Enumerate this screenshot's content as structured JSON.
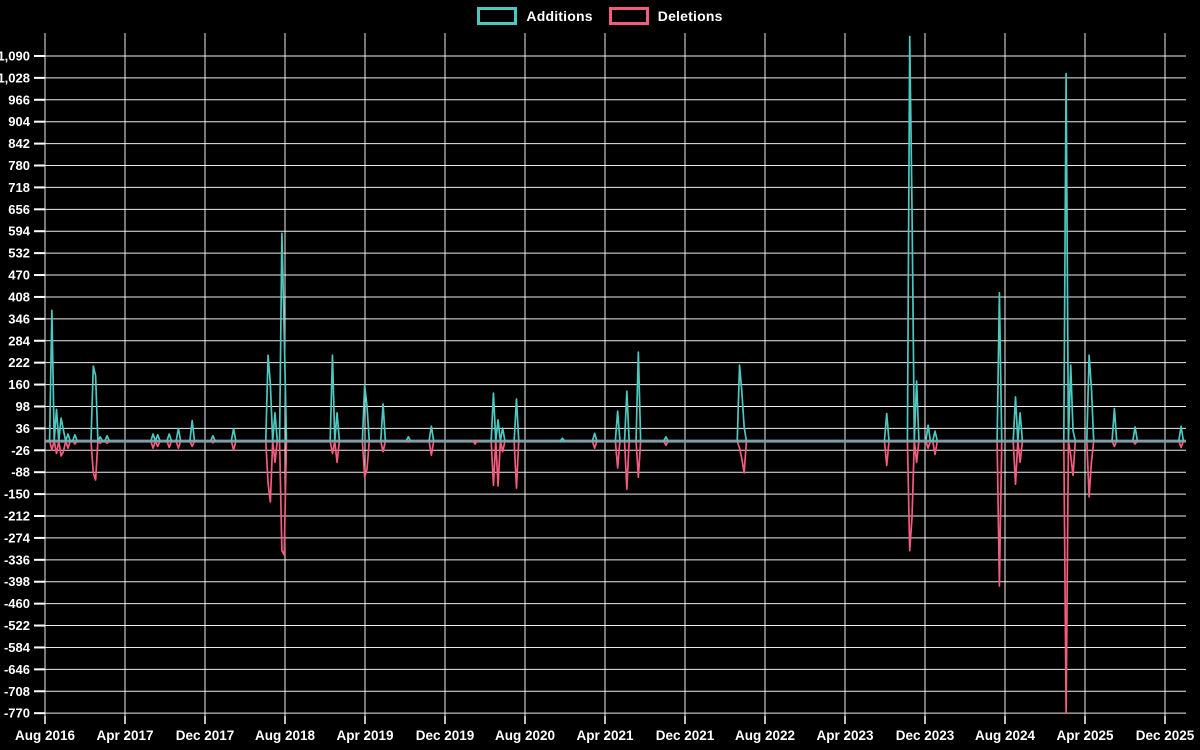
{
  "page": {
    "background": "#000000",
    "text_color": "#ffffff"
  },
  "chart_data": {
    "type": "line",
    "title": "",
    "legend_position": "top-center",
    "grid": true,
    "background": "#000000",
    "gridline_color": "#ffffff",
    "text_color": "#ffffff",
    "baseline_color": "#7f9ca8",
    "series": [
      {
        "name": "Additions",
        "color": "#4cc8c0"
      },
      {
        "name": "Deletions",
        "color": "#f25c7e"
      }
    ],
    "x_axis": {
      "tick_labels": [
        "Aug 2016",
        "Apr 2017",
        "Dec 2017",
        "Aug 2018",
        "Apr 2019",
        "Dec 2019",
        "Aug 2020",
        "Apr 2021",
        "Dec 2021",
        "Aug 2022",
        "Apr 2023",
        "Dec 2023",
        "Aug 2024",
        "Apr 2025",
        "Dec 2025"
      ],
      "months_per_tick": 8,
      "start_label": "Aug 2016",
      "end_label": "Dec 2025",
      "total_months_shown": 114
    },
    "y_axis": {
      "tick_min": -770,
      "tick_max": 1090,
      "tick_step": 62,
      "axis_min": -778,
      "axis_max": 1155
    },
    "sampling": "weekly; months measured from Aug 2016; all weeks not listed below are 0 for both series",
    "default_value": 0,
    "points_format": [
      "months_since_aug_2016",
      "additions",
      "deletions"
    ],
    "points": [
      [
        0.8,
        370,
        -25
      ],
      [
        1.2,
        90,
        -35
      ],
      [
        1.5,
        65,
        -42
      ],
      [
        1.8,
        31,
        -30
      ],
      [
        2.3,
        20,
        -20
      ],
      [
        3.1,
        18,
        -8
      ],
      [
        4.8,
        212,
        -90
      ],
      [
        5.0,
        185,
        -110
      ],
      [
        5.5,
        12,
        -6
      ],
      [
        6.3,
        15,
        -6
      ],
      [
        10.7,
        20,
        -20
      ],
      [
        11.2,
        18,
        -15
      ],
      [
        12.5,
        20,
        -18
      ],
      [
        13.4,
        35,
        -20
      ],
      [
        14.7,
        58,
        -15
      ],
      [
        16.7,
        15,
        -5
      ],
      [
        18.8,
        35,
        -25
      ],
      [
        22.2,
        243,
        -120
      ],
      [
        22.5,
        160,
        -172
      ],
      [
        22.9,
        80,
        -60
      ],
      [
        23.7,
        588,
        -310
      ],
      [
        23.95,
        310,
        -322
      ],
      [
        28.8,
        243,
        -35
      ],
      [
        29.2,
        80,
        -60
      ],
      [
        31.9,
        158,
        -102
      ],
      [
        32.2,
        100,
        -80
      ],
      [
        33.9,
        105,
        -30
      ],
      [
        36.3,
        12,
        -3
      ],
      [
        38.7,
        42,
        -40
      ],
      [
        43.0,
        0,
        -8
      ],
      [
        44.9,
        136,
        -125
      ],
      [
        45.3,
        60,
        -127
      ],
      [
        45.7,
        37,
        -30
      ],
      [
        47.2,
        119,
        -133
      ],
      [
        51.8,
        8,
        0
      ],
      [
        54.9,
        22,
        -20
      ],
      [
        57.2,
        85,
        -76
      ],
      [
        58.2,
        141,
        -136
      ],
      [
        59.3,
        252,
        -102
      ],
      [
        62.2,
        12,
        -12
      ],
      [
        69.4,
        215,
        -20
      ],
      [
        69.65,
        140,
        -50
      ],
      [
        69.9,
        40,
        -90
      ],
      [
        84.2,
        78,
        -69
      ],
      [
        86.4,
        1145,
        -310
      ],
      [
        86.8,
        655,
        -215
      ],
      [
        87.2,
        170,
        -60
      ],
      [
        88.2,
        45,
        -20
      ],
      [
        89.1,
        28,
        -38
      ],
      [
        95.5,
        420,
        -410
      ],
      [
        97.1,
        125,
        -122
      ],
      [
        97.5,
        80,
        -60
      ],
      [
        102.1,
        1040,
        -770
      ],
      [
        102.5,
        215,
        -40
      ],
      [
        102.9,
        30,
        -97
      ],
      [
        104.3,
        243,
        -158
      ],
      [
        104.6,
        150,
        -60
      ],
      [
        107.0,
        92,
        -15
      ],
      [
        109.0,
        40,
        -8
      ],
      [
        113.5,
        42,
        -18
      ]
    ]
  }
}
